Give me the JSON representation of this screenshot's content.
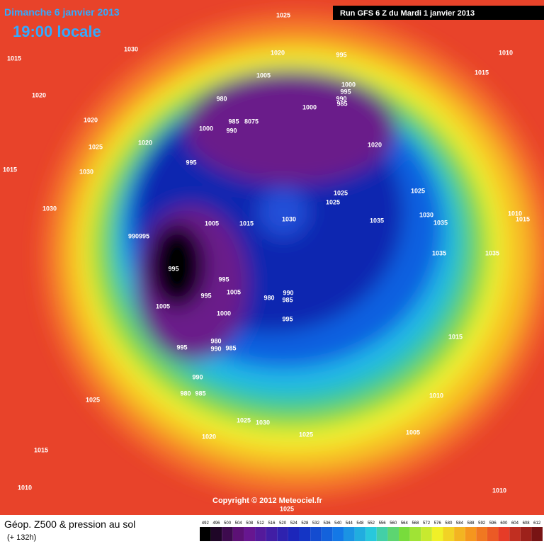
{
  "header": {
    "date": "Dimanche 6 janvier 2013",
    "time": "19:00 locale",
    "run": "Run GFS 6 Z du Mardi 1 janvier 2013"
  },
  "footer": {
    "title": "Géop. Z500 & pression au sol",
    "lead": "(+ 132h)",
    "copyright": "Copyright © 2012 Meteociel.fr"
  },
  "scale": [
    492,
    496,
    500,
    504,
    508,
    512,
    516,
    520,
    524,
    528,
    532,
    536,
    540,
    544,
    548,
    552,
    556,
    560,
    564,
    568,
    572,
    576,
    580,
    584,
    588,
    592,
    596,
    600,
    604,
    608,
    612
  ],
  "isobars": [
    "1025",
    "1030",
    "1015",
    "1020",
    "1020",
    "1025",
    "1020",
    "1015",
    "1030",
    "1030",
    "995",
    "1020",
    "995",
    "1010",
    "1015",
    "1005",
    "980",
    "1000",
    "995",
    "990",
    "985",
    "1000",
    "985",
    "8075",
    "1000",
    "990",
    "1020",
    "1025",
    "1025",
    "1025",
    "1030",
    "1030",
    "1035",
    "1035",
    "1035",
    "1035",
    "1010",
    "1015",
    "1005",
    "1015",
    "990995",
    "995",
    "995",
    "995",
    "1005",
    "980",
    "990",
    "985",
    "1000",
    "995",
    "1005",
    "980",
    "985",
    "995",
    "990",
    "990",
    "980",
    "985",
    "1015",
    "1010",
    "1005",
    "1025",
    "1025",
    "1030",
    "1025",
    "1020",
    "1015",
    "1010",
    "1010",
    "1025"
  ]
}
